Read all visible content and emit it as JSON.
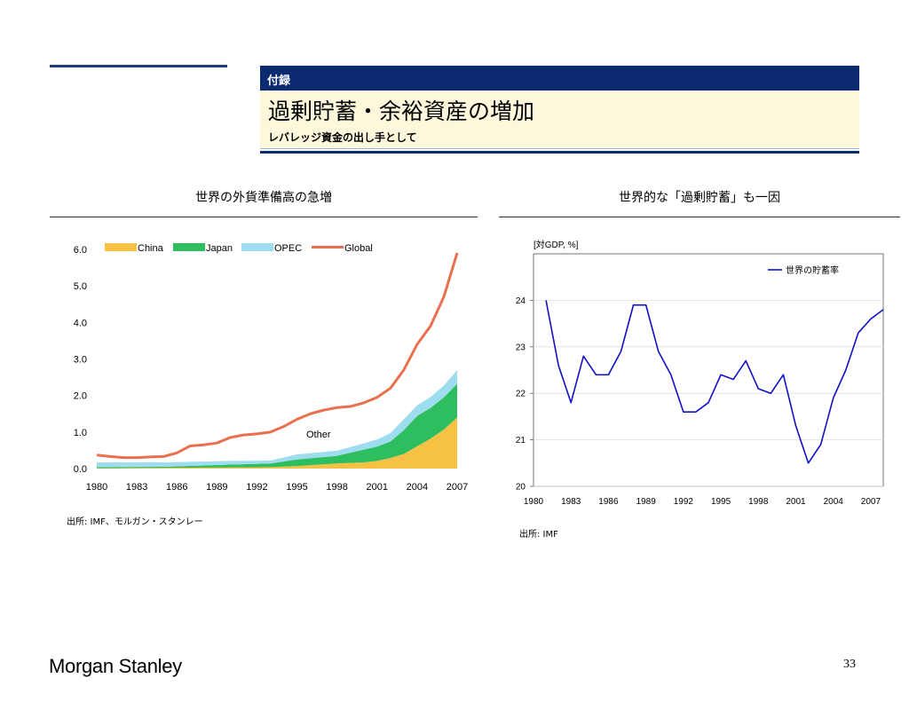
{
  "header": {
    "tag": "付録",
    "title": "過剰貯蓄・余裕資産の増加",
    "subtitle": "レバレッジ資金の出し手として"
  },
  "left_chart_title": "世界の外貨準備高の急増",
  "right_chart_title": "世界的な「過剰貯蓄」も一因",
  "left_source": "出所: IMF、モルガン・スタンレー",
  "right_source": "出所: IMF",
  "footer": {
    "logo": "Morgan Stanley",
    "page": "33"
  },
  "colors": {
    "navy": "#0b2a70",
    "china": "#f7c244",
    "japan": "#2ebd5f",
    "opec": "#9edcef",
    "global": "#e9704f",
    "savings": "#1010c8"
  },
  "chart_data": [
    {
      "type": "area",
      "title": "世界の外貨準備高の急増",
      "x_ticks": [
        "1980",
        "1983",
        "1986",
        "1989",
        "1992",
        "1995",
        "1998",
        "2001",
        "2004",
        "2007"
      ],
      "y_ticks": [
        "0.0",
        "1.0",
        "2.0",
        "3.0",
        "4.0",
        "5.0",
        "6.0"
      ],
      "ylim": [
        0,
        6
      ],
      "xlim": [
        1980,
        2007
      ],
      "annotation": "Other",
      "legend_position": "top",
      "series": [
        {
          "name": "China",
          "kind": "area",
          "x": [
            1980,
            1985,
            1990,
            1993,
            1995,
            1998,
            2000,
            2001,
            2002,
            2003,
            2004,
            2005,
            2006,
            2007
          ],
          "values": [
            0.01,
            0.02,
            0.03,
            0.04,
            0.07,
            0.14,
            0.17,
            0.21,
            0.29,
            0.4,
            0.61,
            0.82,
            1.07,
            1.4
          ]
        },
        {
          "name": "Japan",
          "kind": "area",
          "x": [
            1980,
            1985,
            1990,
            1993,
            1995,
            1998,
            2000,
            2001,
            2002,
            2003,
            2004,
            2005,
            2006,
            2007
          ],
          "values": [
            0.03,
            0.03,
            0.08,
            0.1,
            0.18,
            0.21,
            0.35,
            0.39,
            0.45,
            0.65,
            0.83,
            0.84,
            0.88,
            0.92
          ]
        },
        {
          "name": "OPEC",
          "kind": "area",
          "x": [
            1980,
            1985,
            1990,
            1993,
            1995,
            1998,
            2000,
            2001,
            2002,
            2003,
            2004,
            2005,
            2006,
            2007
          ],
          "values": [
            0.13,
            0.12,
            0.1,
            0.08,
            0.14,
            0.14,
            0.17,
            0.2,
            0.23,
            0.3,
            0.29,
            0.3,
            0.32,
            0.38
          ]
        },
        {
          "name": "Global",
          "kind": "line",
          "x": [
            1980,
            1981,
            1982,
            1983,
            1984,
            1985,
            1986,
            1987,
            1988,
            1989,
            1990,
            1991,
            1992,
            1993,
            1994,
            1995,
            1996,
            1997,
            1998,
            1999,
            2000,
            2001,
            2002,
            2003,
            2004,
            2005,
            2006,
            2007
          ],
          "values": [
            0.37,
            0.33,
            0.3,
            0.3,
            0.32,
            0.33,
            0.43,
            0.62,
            0.65,
            0.7,
            0.85,
            0.92,
            0.95,
            1.0,
            1.15,
            1.35,
            1.5,
            1.6,
            1.67,
            1.7,
            1.8,
            1.95,
            2.2,
            2.7,
            3.4,
            3.9,
            4.7,
            5.9
          ]
        }
      ]
    },
    {
      "type": "line",
      "title": "世界的な「過剰貯蓄」も一因",
      "unit_label": "[対GDP, %]",
      "x_ticks": [
        "1980",
        "1983",
        "1986",
        "1989",
        "1992",
        "1995",
        "1998",
        "2001",
        "2004",
        "2007"
      ],
      "y_ticks": [
        "20",
        "21",
        "22",
        "23",
        "24"
      ],
      "ylim": [
        20,
        25
      ],
      "xlim": [
        1980,
        2008
      ],
      "grid": true,
      "legend_position": "top-right",
      "series": [
        {
          "name": "世界の貯蓄率",
          "x": [
            1981,
            1982,
            1983,
            1984,
            1985,
            1986,
            1987,
            1988,
            1989,
            1990,
            1991,
            1992,
            1993,
            1994,
            1995,
            1996,
            1997,
            1998,
            1999,
            2000,
            2001,
            2002,
            2003,
            2004,
            2005,
            2006,
            2007,
            2008
          ],
          "values": [
            24.0,
            22.6,
            21.8,
            22.8,
            22.4,
            22.4,
            22.9,
            23.9,
            23.9,
            22.9,
            22.4,
            21.6,
            21.6,
            21.8,
            22.4,
            22.3,
            22.7,
            22.1,
            22.0,
            22.4,
            21.3,
            20.5,
            20.9,
            21.9,
            22.5,
            23.3,
            23.6,
            23.8
          ]
        }
      ]
    }
  ]
}
